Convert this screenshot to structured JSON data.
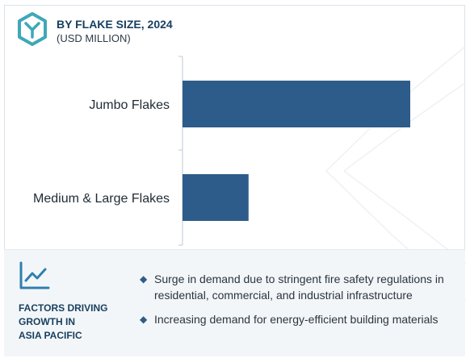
{
  "header": {
    "title": "BY FLAKE SIZE, 2024",
    "subtitle": "(USD MILLION)",
    "logo_icon": "hexagon-y-logo-icon"
  },
  "chart_data": {
    "type": "bar",
    "orientation": "horizontal",
    "categories": [
      "Jumbo Flakes",
      "Medium & Large Flakes"
    ],
    "values": [
      100,
      29
    ],
    "title": "BY FLAKE SIZE, 2024",
    "subtitle": "(USD MILLION)",
    "xlabel": "",
    "ylabel": "",
    "xlim": [
      0,
      100
    ],
    "grid": false,
    "bar_color": "#2e5c8a"
  },
  "footer": {
    "icon": "line-chart-icon",
    "title_lines": [
      "FACTORS DRIVING",
      "GROWTH IN",
      "ASIA PACIFIC"
    ],
    "bullets": [
      "Surge in demand due to stringent fire safety regulations in residential, commercial, and industrial infrastructure",
      "Increasing demand for energy-efficient building materials"
    ]
  },
  "colors": {
    "accent": "#2e5c8a",
    "logo": "#3ea8b8",
    "footer_bg": "#f3f6f8"
  }
}
